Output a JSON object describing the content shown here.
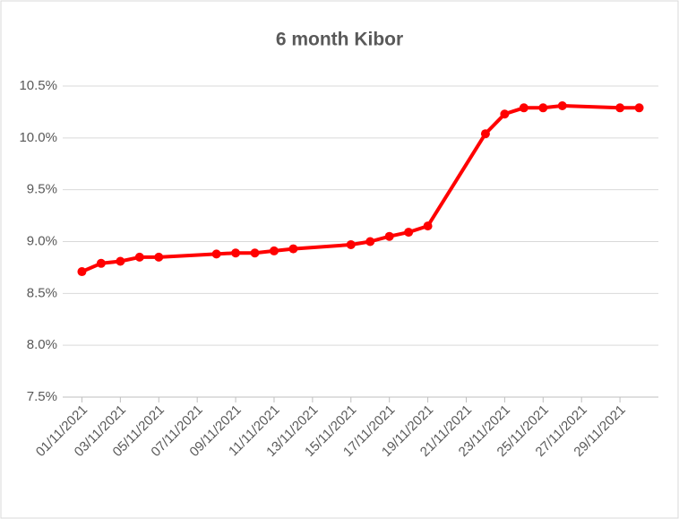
{
  "chart_data": {
    "type": "line",
    "title": "6 month Kibor",
    "x": [
      "01/11/2021",
      "02/11/2021",
      "03/11/2021",
      "04/11/2021",
      "05/11/2021",
      "08/11/2021",
      "09/11/2021",
      "10/11/2021",
      "11/11/2021",
      "12/11/2021",
      "15/11/2021",
      "16/11/2021",
      "17/11/2021",
      "18/11/2021",
      "19/11/2021",
      "22/11/2021",
      "23/11/2021",
      "24/11/2021",
      "25/11/2021",
      "26/11/2021",
      "29/11/2021",
      "30/11/2021"
    ],
    "series": [
      {
        "name": "6 month Kibor",
        "color": "#ff0000",
        "values": [
          8.71,
          8.79,
          8.81,
          8.85,
          8.85,
          8.88,
          8.89,
          8.89,
          8.91,
          8.93,
          8.97,
          9.0,
          9.05,
          9.09,
          9.15,
          10.04,
          10.23,
          10.29,
          10.29,
          10.31,
          10.29,
          10.29
        ]
      }
    ],
    "xlim": [
      "31/10/2021",
      "01/12/2021"
    ],
    "xticks": [
      "01/11/2021",
      "03/11/2021",
      "05/11/2021",
      "07/11/2021",
      "09/11/2021",
      "11/11/2021",
      "13/11/2021",
      "15/11/2021",
      "17/11/2021",
      "19/11/2021",
      "21/11/2021",
      "23/11/2021",
      "25/11/2021",
      "27/11/2021",
      "29/11/2021"
    ],
    "ylim": [
      7.5,
      10.5
    ],
    "yticks": [
      {
        "value": 7.5,
        "label": "7.5%"
      },
      {
        "value": 8.0,
        "label": "8.0%"
      },
      {
        "value": 8.5,
        "label": "8.5%"
      },
      {
        "value": 9.0,
        "label": "9.0%"
      },
      {
        "value": 9.5,
        "label": "9.5%"
      },
      {
        "value": 10.0,
        "label": "10.0%"
      },
      {
        "value": 10.5,
        "label": "10.5%"
      }
    ],
    "grid": true
  }
}
